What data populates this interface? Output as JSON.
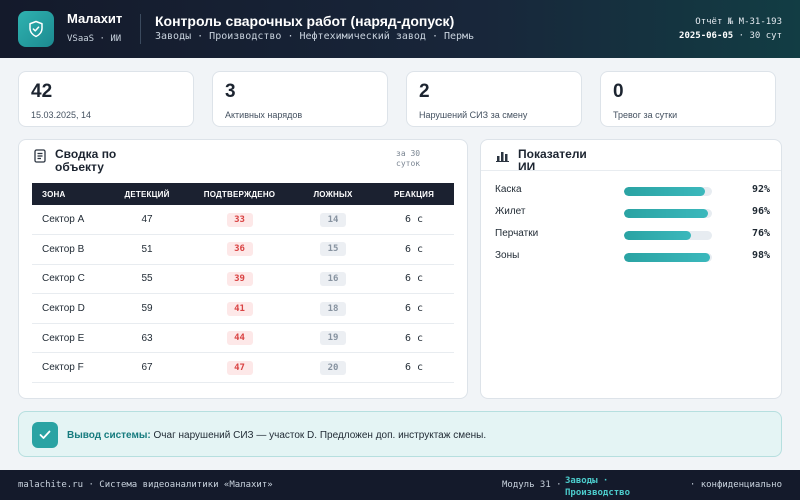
{
  "header": {
    "brand": "Малахит",
    "brand_sub": "VSaaS · ИИ",
    "title": "Контроль сварочных работ (наряд-допуск)",
    "breadcrumb": "Заводы · Производство · Нефтехимический завод · Пермь",
    "report_line1": "Отчёт № M-31-193",
    "report_date": "2025-06-05",
    "report_suffix": "· 30 сут"
  },
  "stats": [
    {
      "value": "42",
      "label": "15.03.2025, 14"
    },
    {
      "value": "3",
      "label": "Активных нарядов"
    },
    {
      "value": "2",
      "label": "Нарушений СИЗ за смену"
    },
    {
      "value": "0",
      "label": "Тревог за сутки"
    }
  ],
  "summary": {
    "title": "Сводка по объекту",
    "period": "за 30 суток",
    "headers": [
      "ЗОНА",
      "ДЕТЕКЦИЙ",
      "ПОДТВЕРЖДЕНО",
      "ЛОЖНЫХ",
      "РЕАКЦИЯ"
    ],
    "rows": [
      {
        "zone": "Сектор A",
        "detections": "47",
        "confirmed": "33",
        "false": "14",
        "reaction": "6 с"
      },
      {
        "zone": "Сектор B",
        "detections": "51",
        "confirmed": "36",
        "false": "15",
        "reaction": "6 с"
      },
      {
        "zone": "Сектор C",
        "detections": "55",
        "confirmed": "39",
        "false": "16",
        "reaction": "6 с"
      },
      {
        "zone": "Сектор D",
        "detections": "59",
        "confirmed": "41",
        "false": "18",
        "reaction": "6 с"
      },
      {
        "zone": "Сектор E",
        "detections": "63",
        "confirmed": "44",
        "false": "19",
        "reaction": "6 с"
      },
      {
        "zone": "Сектор F",
        "detections": "67",
        "confirmed": "47",
        "false": "20",
        "reaction": "6 с"
      }
    ]
  },
  "ai": {
    "title": "Показатели ИИ",
    "items": [
      {
        "label": "Каска",
        "value": 92,
        "pct": "92%"
      },
      {
        "label": "Жилет",
        "value": 96,
        "pct": "96%"
      },
      {
        "label": "Перчатки",
        "value": 76,
        "pct": "76%"
      },
      {
        "label": "Зоны",
        "value": 98,
        "pct": "98%"
      }
    ]
  },
  "conclusion": {
    "label": "Вывод системы:",
    "text": "Очаг нарушений СИЗ — участок D. Предложен доп. инструктаж смены."
  },
  "footer": {
    "left": "malachite.ru · Система видеоаналитики «Малахит»",
    "module": "Модуль 31 ·",
    "link": "Заводы · Производство",
    "confidential": "· конфиденциально"
  },
  "colors": {
    "accent": "#2aa3a3",
    "header_bg": "#141a2b",
    "danger": "#d94343"
  }
}
